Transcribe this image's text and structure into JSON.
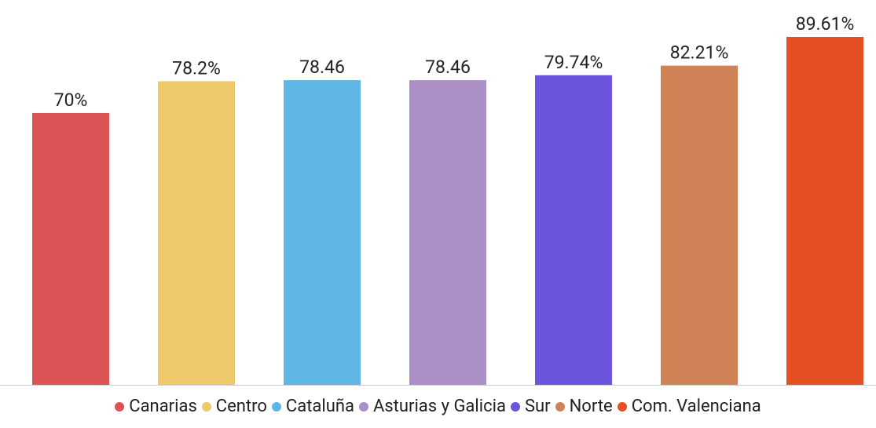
{
  "chart_data": {
    "type": "bar",
    "categories": [
      "Canarias",
      "Centro",
      "Cataluña",
      "Asturias y Galicia",
      "Sur",
      "Norte",
      "Com. Valenciana"
    ],
    "values": [
      70,
      78.2,
      78.46,
      78.46,
      79.74,
      82.21,
      89.61
    ],
    "value_labels": [
      "70%",
      "78.2%",
      "78.46",
      "78.46",
      "79.74%",
      "82.21%",
      "89.61%"
    ],
    "colors": [
      "#dc5356",
      "#eec96b",
      "#5fb6e5",
      "#ab90c8",
      "#6c55dc",
      "#d08257",
      "#e44f24"
    ],
    "legend": "bottom"
  }
}
